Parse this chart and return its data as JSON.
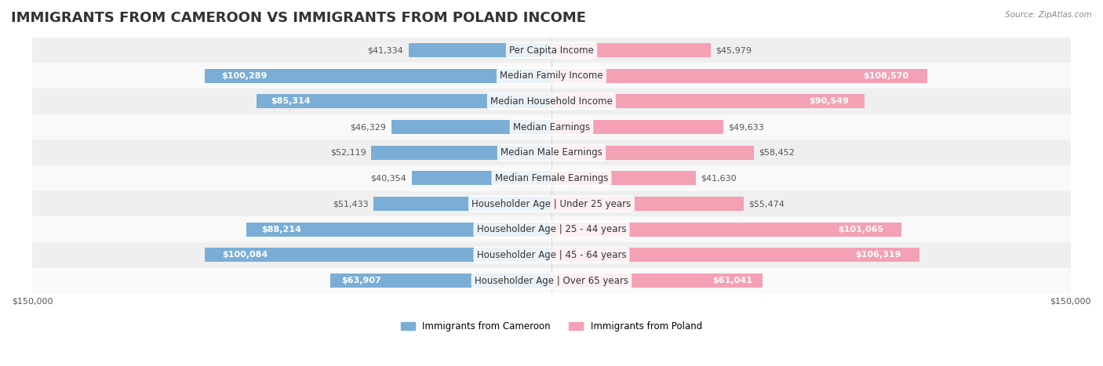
{
  "title": "IMMIGRANTS FROM CAMEROON VS IMMIGRANTS FROM POLAND INCOME",
  "source": "Source: ZipAtlas.com",
  "categories": [
    "Per Capita Income",
    "Median Family Income",
    "Median Household Income",
    "Median Earnings",
    "Median Male Earnings",
    "Median Female Earnings",
    "Householder Age | Under 25 years",
    "Householder Age | 25 - 44 years",
    "Householder Age | 45 - 64 years",
    "Householder Age | Over 65 years"
  ],
  "cameroon_values": [
    41334,
    100289,
    85314,
    46329,
    52119,
    40354,
    51433,
    88214,
    100084,
    63907
  ],
  "poland_values": [
    45979,
    108570,
    90549,
    49633,
    58452,
    41630,
    55474,
    101065,
    106319,
    61041
  ],
  "cameroon_color": "#7aaed6",
  "poland_color": "#f4a0b5",
  "cameroon_label": "Immigrants from Cameroon",
  "poland_label": "Immigrants from Poland",
  "max_value": 150000,
  "bar_height": 0.55,
  "bg_color": "#f5f5f5",
  "row_bg_even": "#efefef",
  "row_bg_odd": "#f9f9f9",
  "title_fontsize": 13,
  "label_fontsize": 8.5,
  "value_fontsize": 8,
  "axis_label_fontsize": 8
}
